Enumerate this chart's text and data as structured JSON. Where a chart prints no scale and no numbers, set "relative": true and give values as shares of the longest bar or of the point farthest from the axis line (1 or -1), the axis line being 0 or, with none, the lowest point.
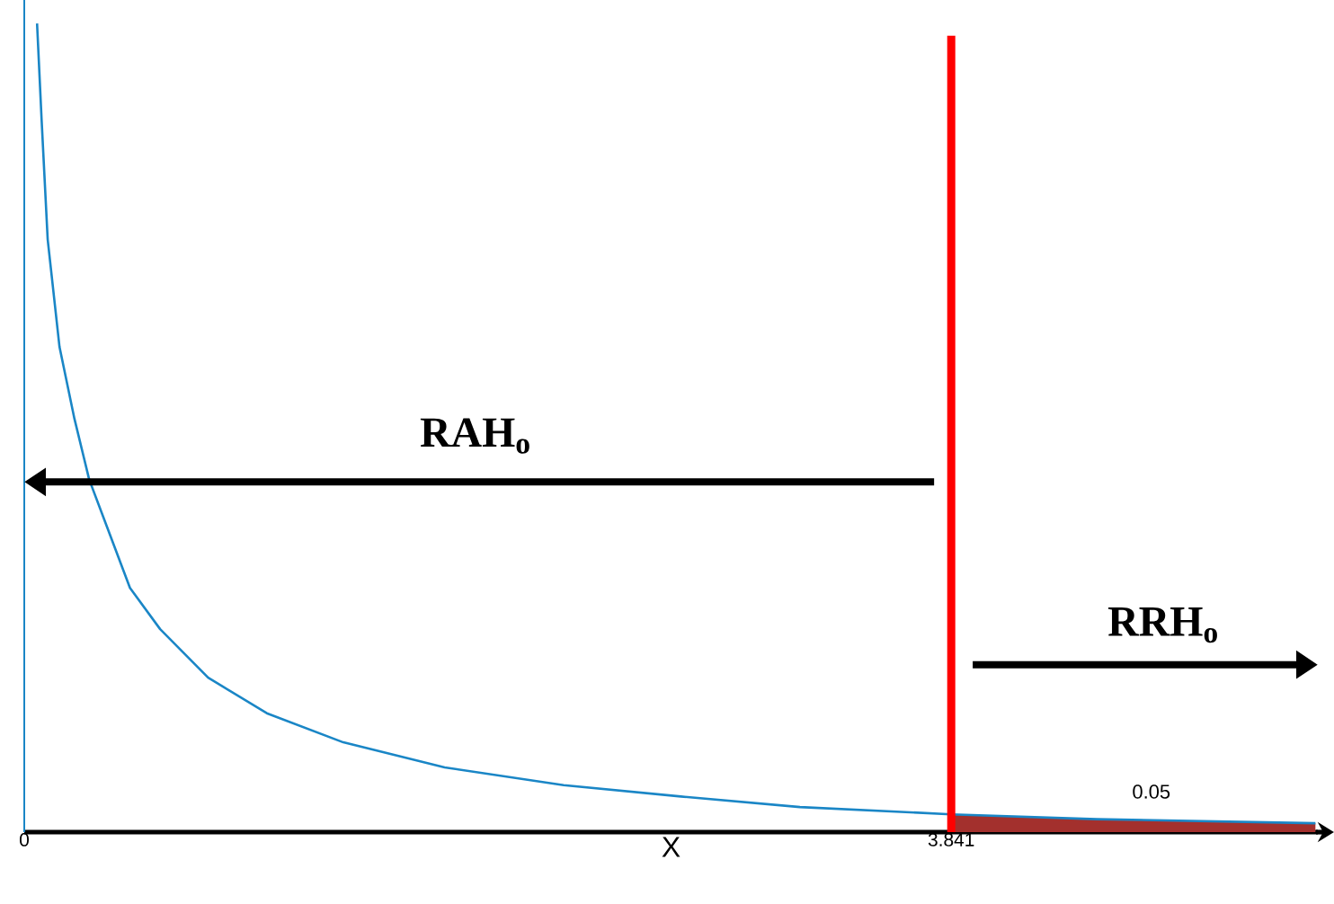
{
  "chart_data": {
    "type": "line",
    "relative": true,
    "xlabel": "X",
    "xlim": [
      0,
      5.36
    ],
    "xticks": [
      0,
      3.841
    ],
    "series": [
      {
        "type": "area",
        "color": "#a3302d",
        "x": [
          3.841,
          4.445,
          5.35
        ],
        "values": [
          0.022,
          0.016,
          0.011
        ]
      },
      {
        "color": "#1a86c6",
        "x": [
          0.053,
          0.072,
          0.097,
          0.146,
          0.208,
          0.269,
          0.342,
          0.438,
          0.563,
          0.762,
          1.005,
          1.322,
          1.742,
          2.235,
          2.721,
          3.214,
          3.841,
          4.445,
          5.35
        ],
        "values": [
          1.0,
          0.88,
          0.733,
          0.6,
          0.511,
          0.436,
          0.378,
          0.302,
          0.251,
          0.191,
          0.147,
          0.111,
          0.08,
          0.058,
          0.044,
          0.031,
          0.022,
          0.016,
          0.011
        ]
      }
    ],
    "ref_lines": [
      {
        "axis": "x",
        "value": 3.841,
        "color": "#ff0000"
      }
    ],
    "annotations": [
      "RAH$_{o}$",
      "RRH$_{o}$",
      "0.05"
    ]
  }
}
